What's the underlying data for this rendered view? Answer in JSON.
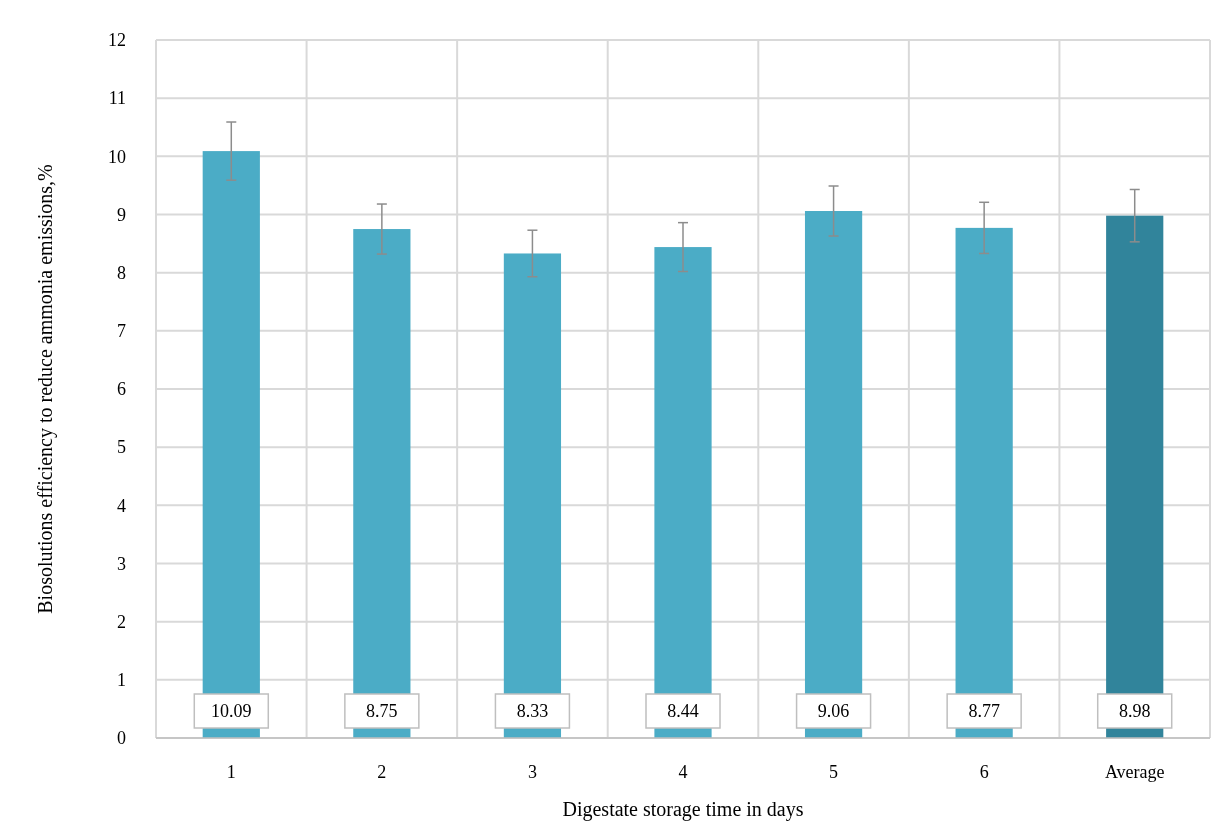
{
  "chart_data": {
    "type": "bar",
    "xlabel": "Digestate storage time in days",
    "ylabel": "Biosolutions efficiency to reduce ammonia emissions,%",
    "categories": [
      "1",
      "2",
      "3",
      "4",
      "5",
      "6",
      "Average"
    ],
    "values": [
      10.09,
      8.75,
      8.33,
      8.44,
      9.06,
      8.77,
      8.98
    ],
    "colors": [
      "#4bacc6",
      "#4bacc6",
      "#4bacc6",
      "#4bacc6",
      "#4bacc6",
      "#4bacc6",
      "#31849b"
    ],
    "errors": [
      0.5,
      0.43,
      0.4,
      0.42,
      0.43,
      0.44,
      0.45
    ],
    "ylim": [
      0,
      12
    ],
    "yticks": [
      0,
      1,
      2,
      3,
      4,
      5,
      6,
      7,
      8,
      9,
      10,
      11,
      12
    ],
    "grid": true,
    "data_labels": true
  }
}
